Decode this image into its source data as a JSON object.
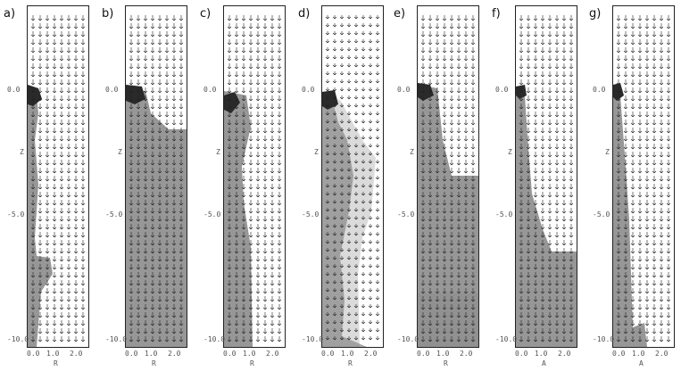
{
  "panels": [
    {
      "letter": "a)",
      "xlabel": "R",
      "ylabel": "Z"
    },
    {
      "letter": "b)",
      "xlabel": "R",
      "ylabel": "Z"
    },
    {
      "letter": "c)",
      "xlabel": "R",
      "ylabel": "Z"
    },
    {
      "letter": "d)",
      "xlabel": "R",
      "ylabel": "Z"
    },
    {
      "letter": "e)",
      "xlabel": "R",
      "ylabel": "Z"
    },
    {
      "letter": "f)",
      "xlabel": "A",
      "ylabel": "Z"
    },
    {
      "letter": "g)",
      "xlabel": "A",
      "ylabel": "Z"
    }
  ],
  "y_ticks": [
    "0.0",
    "-5.0",
    "-10.0"
  ],
  "x_ticks": [
    "0.0",
    "1.0",
    "2.0"
  ],
  "colors": {
    "background": "#ffffff",
    "field_gray": "#8c8c8c",
    "light_gray": "#bdbdbd",
    "dark_blob": "#2a2a2a",
    "arrow": "#222222"
  }
}
